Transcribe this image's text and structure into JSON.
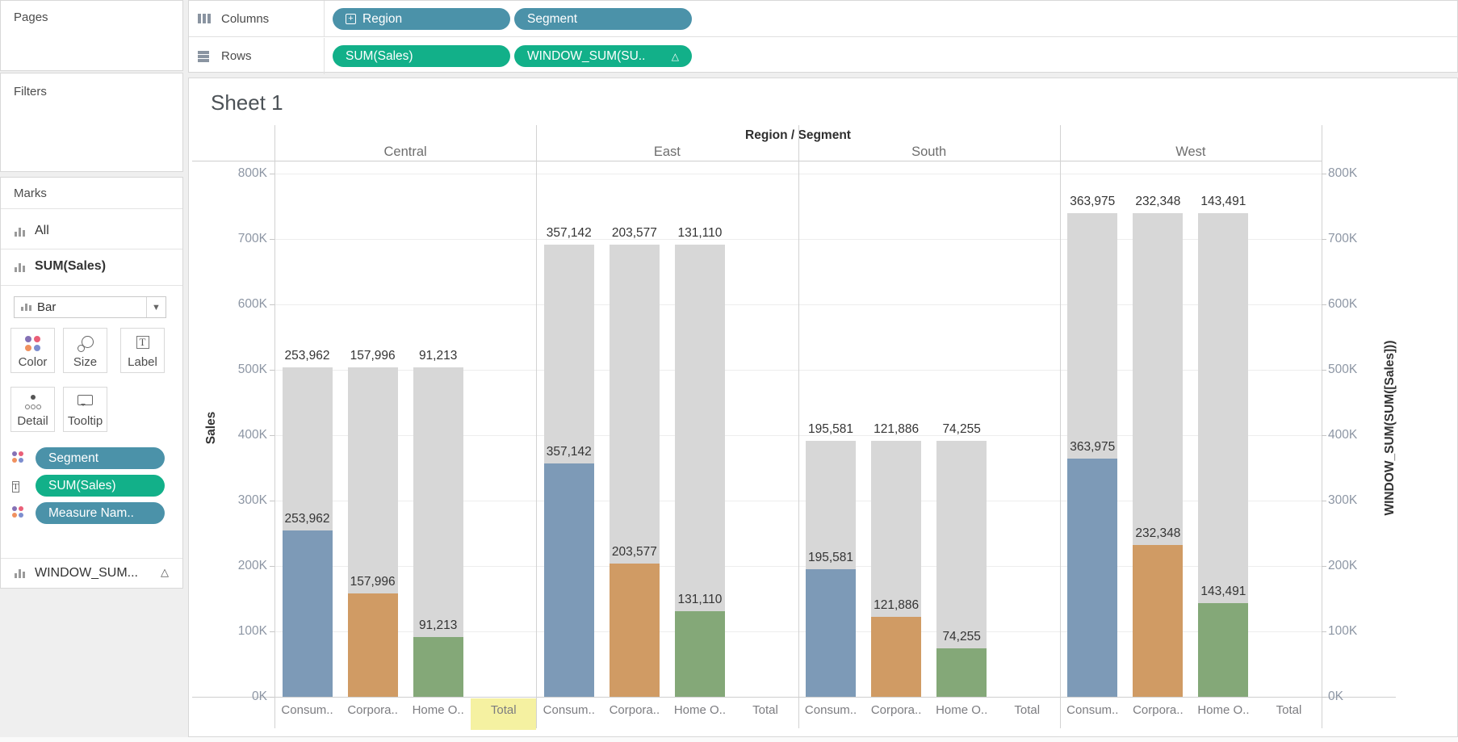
{
  "panels": {
    "pages": {
      "title": "Pages"
    },
    "filters": {
      "title": "Filters"
    },
    "marks": {
      "title": "Marks",
      "cards": [
        {
          "label": "All"
        },
        {
          "label": "SUM(Sales)"
        }
      ],
      "mark_type": {
        "label": "Bar"
      },
      "buttons": [
        {
          "label": "Color"
        },
        {
          "label": "Size"
        },
        {
          "label": "Label"
        },
        {
          "label": "Detail"
        },
        {
          "label": "Tooltip"
        }
      ],
      "pills": [
        {
          "label": "Segment",
          "type": "dimension",
          "icon": "color-dots-icon"
        },
        {
          "label": "SUM(Sales)",
          "type": "measure",
          "icon": "label-t-icon"
        },
        {
          "label": "Measure Nam..",
          "type": "dimension",
          "icon": "color-dots-icon"
        }
      ],
      "window_card": {
        "label": "WINDOW_SUM...",
        "delta": "△"
      }
    }
  },
  "shelves": {
    "columns": {
      "label": "Columns",
      "pills": [
        {
          "label": "Region",
          "expand": "+"
        },
        {
          "label": "Segment"
        }
      ]
    },
    "rows": {
      "label": "Rows",
      "pills": [
        {
          "label": "SUM(Sales)"
        },
        {
          "label": "WINDOW_SUM(SU..",
          "delta": "△"
        }
      ]
    }
  },
  "sheet": {
    "title": "Sheet 1"
  },
  "chart_data": {
    "type": "bar",
    "header": "Region / Segment",
    "regions": [
      "Central",
      "East",
      "South",
      "West"
    ],
    "segments": [
      "Consumer",
      "Corporate",
      "Home Office"
    ],
    "segment_axis_labels": [
      "Consum..",
      "Corpora..",
      "Home O..",
      "Total"
    ],
    "series": [
      {
        "region": "Central",
        "values": [
          253962,
          157996,
          91213
        ],
        "window_sum": 503171
      },
      {
        "region": "East",
        "values": [
          357142,
          203577,
          131110
        ],
        "window_sum": 691829
      },
      {
        "region": "South",
        "values": [
          195581,
          121886,
          74255
        ],
        "window_sum": 391722
      },
      {
        "region": "West",
        "values": [
          363975,
          232348,
          143491
        ],
        "window_sum": 739814
      }
    ],
    "value_labels": [
      [
        "253,962",
        "157,996",
        "91,213"
      ],
      [
        "357,142",
        "203,577",
        "131,110"
      ],
      [
        "195,581",
        "121,886",
        "74,255"
      ],
      [
        "363,975",
        "232,348",
        "143,491"
      ]
    ],
    "left_axis": {
      "title": "Sales",
      "ticks": [
        "0K",
        "100K",
        "200K",
        "300K",
        "400K",
        "500K",
        "600K",
        "700K",
        "800K"
      ],
      "range": [
        0,
        800000
      ]
    },
    "right_axis": {
      "title": "WINDOW_SUM(SUM([Sales]))",
      "ticks": [
        "0K",
        "100K",
        "200K",
        "300K",
        "400K",
        "500K",
        "600K",
        "700K",
        "800K"
      ],
      "range": [
        0,
        800000
      ]
    },
    "colors": {
      "segments": [
        "#7d9ab7",
        "#d09b64",
        "#84a878"
      ],
      "window_bar": "#d7d7d7",
      "highlight": "#f5f1a1"
    },
    "highlight_cell": {
      "region_index": 0,
      "slot_index": 3
    },
    "grid": true,
    "legend": "none"
  },
  "colors": {
    "dimension_pill": "#4b92a9",
    "measure_pill": "#12b089",
    "color_dots": [
      "#8571b5",
      "#ea5f78",
      "#f0915f",
      "#7d8ecf"
    ]
  }
}
